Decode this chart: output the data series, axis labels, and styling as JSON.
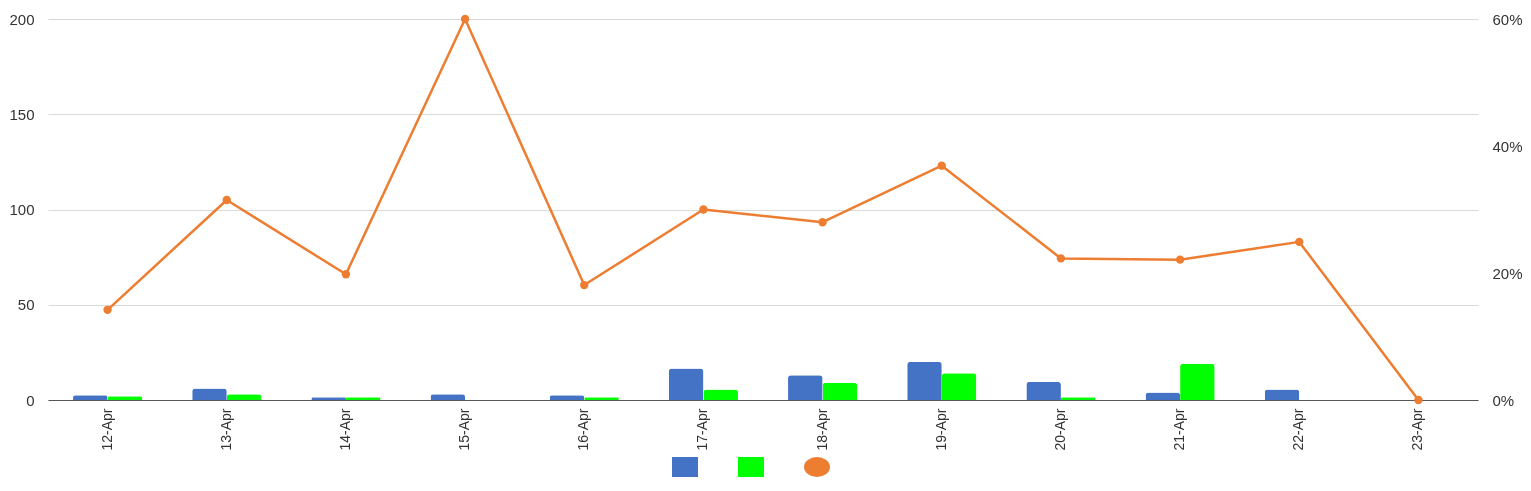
{
  "chart_data": {
    "type": "bar",
    "categories": [
      "12-Apr",
      "13-Apr",
      "14-Apr",
      "15-Apr",
      "16-Apr",
      "17-Apr",
      "18-Apr",
      "19-Apr",
      "20-Apr",
      "21-Apr",
      "22-Apr",
      "23-Apr"
    ],
    "series": [
      {
        "color": "#4472c4",
        "values": [
          2.5,
          6,
          1.5,
          3,
          2.5,
          16.5,
          13,
          20,
          9.5,
          4,
          5.5,
          0
        ]
      },
      {
        "color": "#00ff00",
        "values": [
          2,
          3,
          1.5,
          0,
          1.5,
          5.5,
          9,
          14,
          1.5,
          19,
          0,
          0
        ]
      },
      {
        "type": "line",
        "axis": "y2",
        "color": "#ed7d31",
        "marker": "circle",
        "values": [
          14.2,
          31.5,
          19.8,
          60,
          18.1,
          30,
          28,
          36.9,
          22.3,
          22.1,
          24.9,
          0
        ]
      }
    ],
    "ylim": [
      0,
      200
    ],
    "yticks": [
      0,
      50,
      100,
      150,
      200
    ],
    "y2lim": [
      0,
      60
    ],
    "y2ticks": [
      {
        "value": 0,
        "label": "0%"
      },
      {
        "value": 20,
        "label": "20%"
      },
      {
        "value": 40,
        "label": "40%"
      },
      {
        "value": 60,
        "label": "60%"
      }
    ],
    "grid": "y"
  }
}
